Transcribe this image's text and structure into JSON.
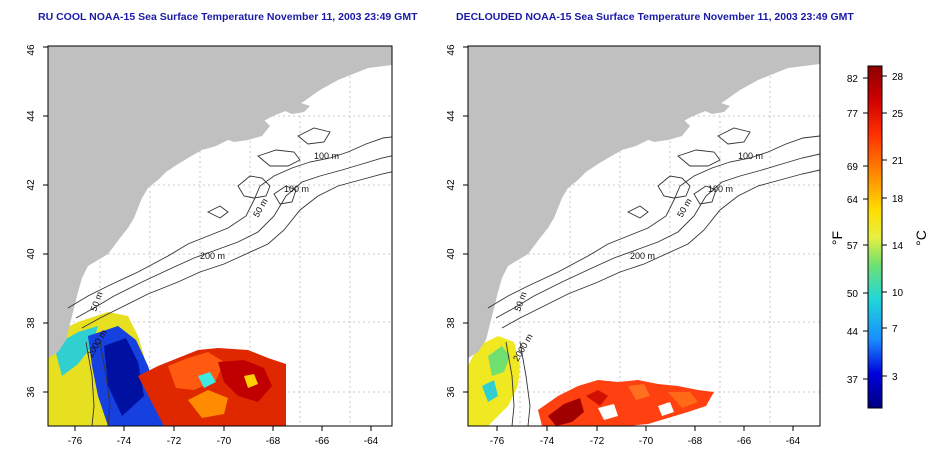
{
  "maps": [
    {
      "title": "RU COOL NOAA-15 Sea Surface Temperature November 11, 2003 23:49 GMT",
      "x_ticks": [
        "-76",
        "-74",
        "-72",
        "-70",
        "-68",
        "-66",
        "-64"
      ],
      "y_ticks": [
        "36",
        "38",
        "40",
        "42",
        "44",
        "46"
      ],
      "contour_labels": [
        "100 m",
        "100 m",
        "50 m",
        "200 m",
        "50 m",
        "2000 m"
      ]
    },
    {
      "title": "DECLOUDED NOAA-15 Sea Surface Temperature November 11, 2003 23:49 GMT",
      "x_ticks": [
        "-76",
        "-74",
        "-72",
        "-70",
        "-68",
        "-66",
        "-64"
      ],
      "y_ticks": [
        "36",
        "38",
        "40",
        "42",
        "44",
        "46"
      ],
      "contour_labels": [
        "100 m",
        "100 m",
        "50 m",
        "200 m",
        "50 m",
        "2000 m"
      ]
    }
  ],
  "colorbar": {
    "f_ticks": [
      "82",
      "77",
      "69",
      "64",
      "57",
      "50",
      "44",
      "37"
    ],
    "c_ticks": [
      "28",
      "25",
      "21",
      "18",
      "14",
      "10",
      "7",
      "3"
    ],
    "label_f": "°F",
    "label_c": "°C",
    "colors": [
      "#8b0000",
      "#e00000",
      "#ff5a00",
      "#ffaa00",
      "#ffff33",
      "#7ae070",
      "#20d8d8",
      "#1a8cff",
      "#0000cc",
      "#000080"
    ]
  },
  "colors": {
    "land": "#c0c0c0",
    "contour": "#333333",
    "grid": "#bbbbbb",
    "title": "#1a1aa8"
  }
}
